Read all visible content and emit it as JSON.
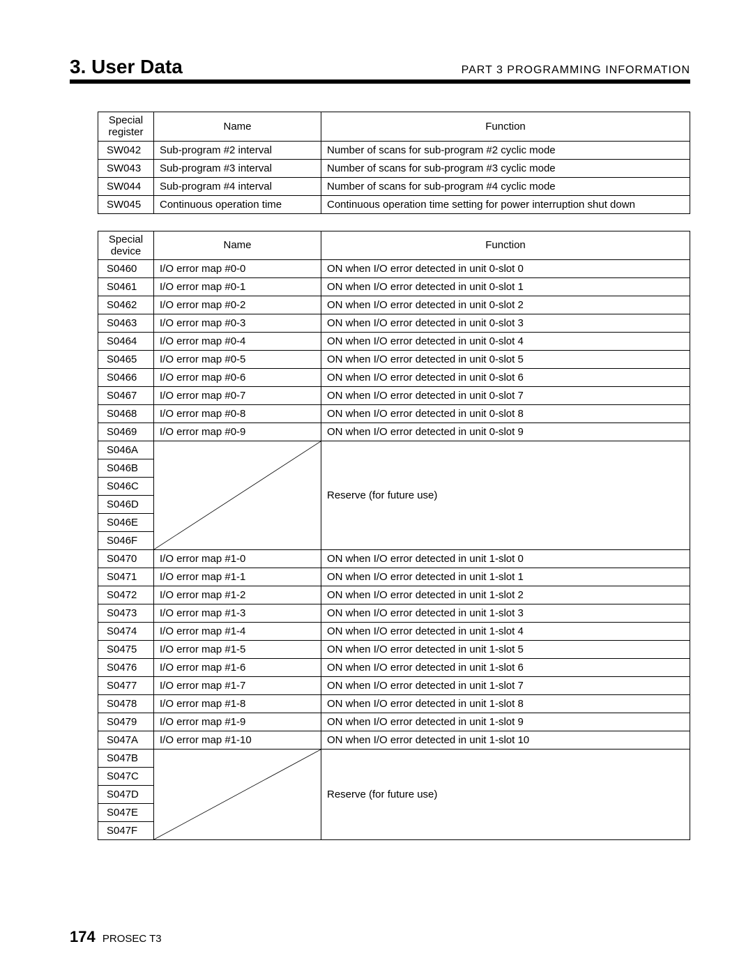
{
  "header": {
    "section_title": "3. User Data",
    "part_title": "PART 3  PROGRAMMING  INFORMATION"
  },
  "table1": {
    "headers": {
      "col1": "Special\nregister",
      "col2": "Name",
      "col3": "Function"
    },
    "rows": [
      {
        "reg": "SW042",
        "name": "Sub-program #2 interval",
        "func": "Number of scans for sub-program #2 cyclic mode"
      },
      {
        "reg": "SW043",
        "name": "Sub-program #3 interval",
        "func": "Number of scans for sub-program #3 cyclic mode"
      },
      {
        "reg": "SW044",
        "name": "Sub-program #4 interval",
        "func": "Number of scans for sub-program #4 cyclic mode"
      },
      {
        "reg": "SW045",
        "name": "Continuous operation time",
        "func": "Continuous operation time setting for power interruption shut down"
      }
    ]
  },
  "table2": {
    "headers": {
      "col1": "Special\ndevice",
      "col2": "Name",
      "col3": "Function"
    },
    "block1": {
      "rows": [
        {
          "reg": "S0460",
          "name": "I/O error map #0-0",
          "func": "ON when I/O error detected in unit 0-slot 0"
        },
        {
          "reg": "S0461",
          "name": "I/O error map #0-1",
          "func": "ON when I/O error detected in unit 0-slot 1"
        },
        {
          "reg": "S0462",
          "name": "I/O error map #0-2",
          "func": "ON when I/O error detected in unit 0-slot 2"
        },
        {
          "reg": "S0463",
          "name": "I/O error map #0-3",
          "func": "ON when I/O error detected in unit 0-slot 3"
        },
        {
          "reg": "S0464",
          "name": "I/O error map #0-4",
          "func": "ON when I/O error detected in unit 0-slot 4"
        },
        {
          "reg": "S0465",
          "name": "I/O error map #0-5",
          "func": "ON when I/O error detected in unit 0-slot 5"
        },
        {
          "reg": "S0466",
          "name": "I/O error map #0-6",
          "func": "ON when I/O error detected in unit 0-slot 6"
        },
        {
          "reg": "S0467",
          "name": "I/O error map #0-7",
          "func": "ON when I/O error detected in unit 0-slot 7"
        },
        {
          "reg": "S0468",
          "name": "I/O error map #0-8",
          "func": "ON when I/O error detected in unit 0-slot 8"
        },
        {
          "reg": "S0469",
          "name": "I/O error map #0-9",
          "func": "ON when I/O error detected in unit 0-slot 9"
        }
      ]
    },
    "reserve1": {
      "regs": [
        "S046A",
        "S046B",
        "S046C",
        "S046D",
        "S046E",
        "S046F"
      ],
      "func": "Reserve (for future use)"
    },
    "block2": {
      "rows": [
        {
          "reg": "S0470",
          "name": "I/O error map #1-0",
          "func": "ON when I/O error detected in unit 1-slot 0"
        },
        {
          "reg": "S0471",
          "name": "I/O error map #1-1",
          "func": "ON when I/O error detected in unit 1-slot 1"
        },
        {
          "reg": "S0472",
          "name": "I/O error map #1-2",
          "func": "ON when I/O error detected in unit 1-slot 2"
        },
        {
          "reg": "S0473",
          "name": "I/O error map #1-3",
          "func": "ON when I/O error detected in unit 1-slot 3"
        },
        {
          "reg": "S0474",
          "name": "I/O error map #1-4",
          "func": "ON when I/O error detected in unit 1-slot 4"
        },
        {
          "reg": "S0475",
          "name": "I/O error map #1-5",
          "func": "ON when I/O error detected in unit 1-slot 5"
        },
        {
          "reg": "S0476",
          "name": "I/O error map #1-6",
          "func": "ON when I/O error detected in unit 1-slot 6"
        },
        {
          "reg": "S0477",
          "name": "I/O error map #1-7",
          "func": "ON when I/O error detected in unit 1-slot 7"
        },
        {
          "reg": "S0478",
          "name": "I/O error map #1-8",
          "func": "ON when I/O error detected in unit 1-slot 8"
        },
        {
          "reg": "S0479",
          "name": "I/O error map #1-9",
          "func": "ON when I/O error detected in unit 1-slot 9"
        },
        {
          "reg": "S047A",
          "name": "I/O error map #1-10",
          "func": "ON when I/O error detected in unit 1-slot 10"
        }
      ]
    },
    "reserve2": {
      "regs": [
        "S047B",
        "S047C",
        "S047D",
        "S047E",
        "S047F"
      ],
      "func": "Reserve (for future use)"
    }
  },
  "footer": {
    "page_number": "174",
    "doc_name": "PROSEC T3"
  }
}
